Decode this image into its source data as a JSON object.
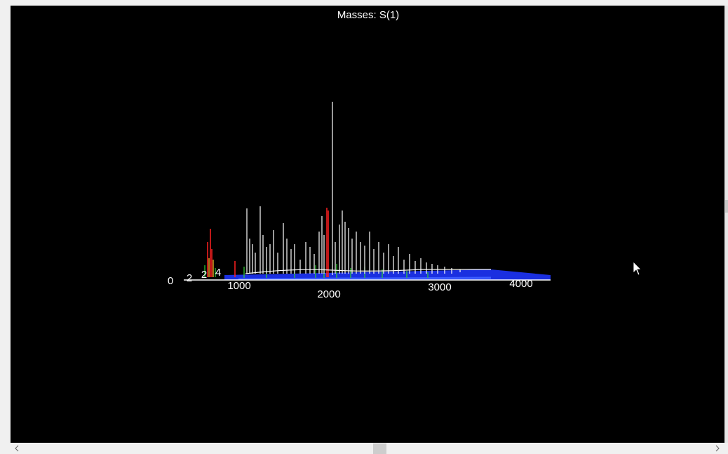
{
  "viewer": {
    "title": "Masses:  S(1)",
    "axis_labels": [
      "0",
      "2",
      "2",
      "4",
      "1000",
      "2000",
      "3000",
      "4000"
    ]
  }
}
